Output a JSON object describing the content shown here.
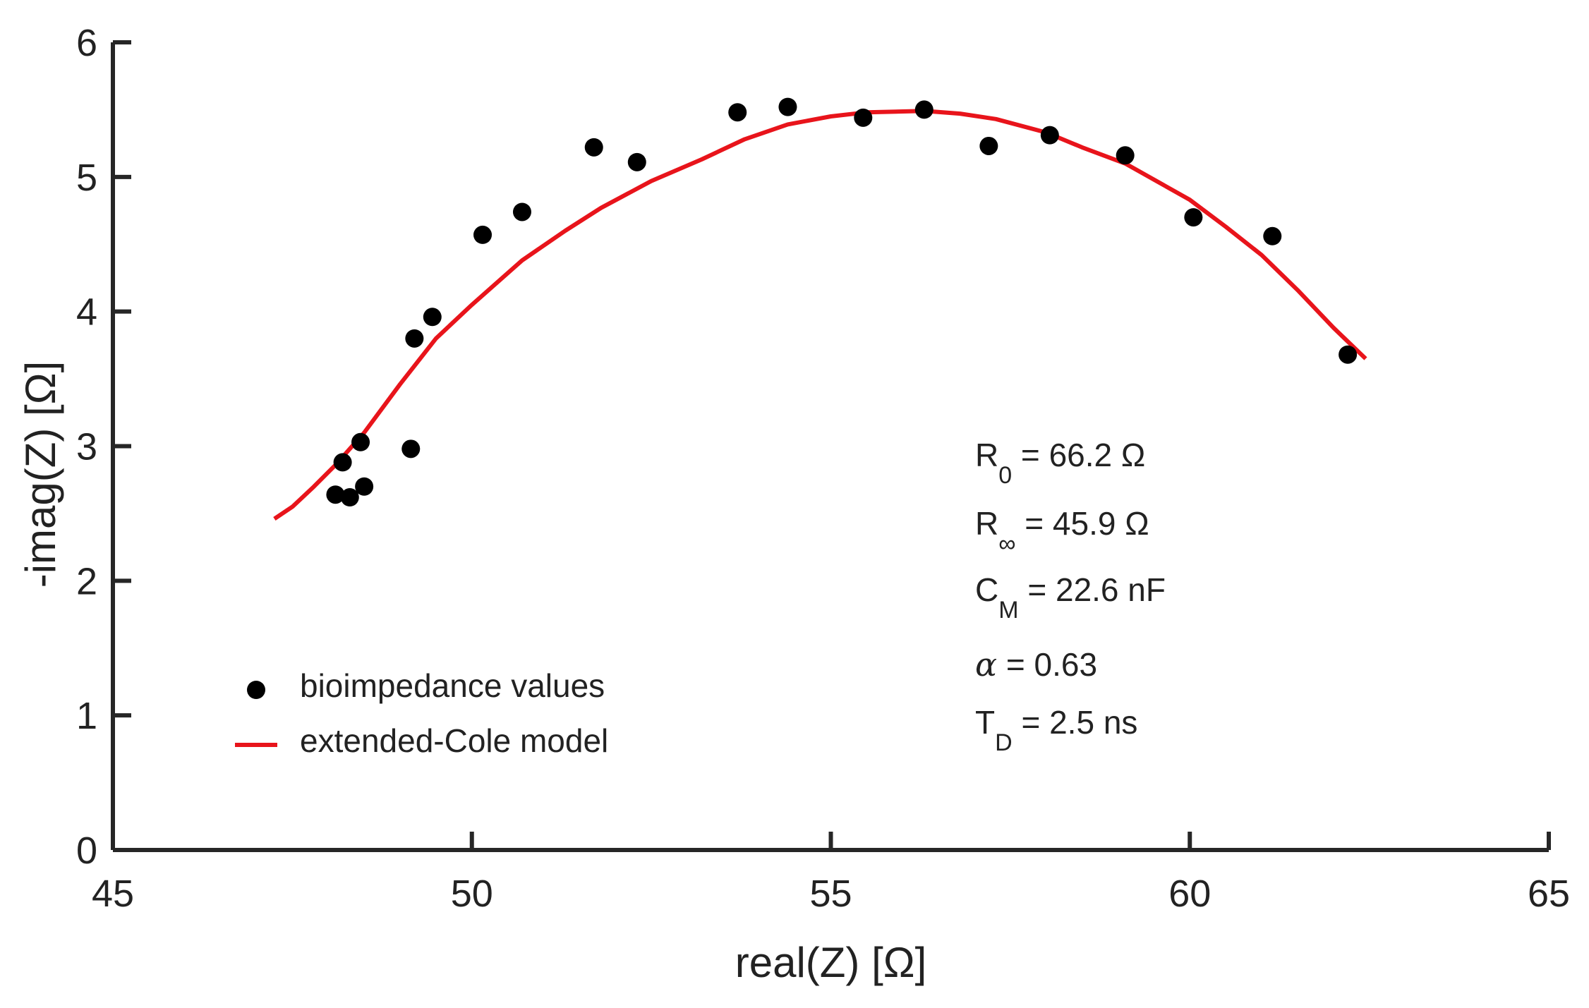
{
  "chart_data": {
    "type": "scatter",
    "title": "",
    "xlabel": "real(Z) [Ω]",
    "ylabel": "-imag(Z) [Ω]",
    "xlim": [
      45,
      65
    ],
    "ylim": [
      0,
      6
    ],
    "xticks": [
      "45",
      "50",
      "55",
      "60",
      "65"
    ],
    "yticks": [
      "0",
      "1",
      "2",
      "3",
      "4",
      "5",
      "6"
    ],
    "grid": false,
    "legend_position": "bottom-left",
    "series": [
      {
        "name": "bioimpedance values",
        "kind": "scatter",
        "color": "#000000",
        "points": [
          [
            48.1,
            2.64
          ],
          [
            48.3,
            2.62
          ],
          [
            48.2,
            2.88
          ],
          [
            48.5,
            2.7
          ],
          [
            48.45,
            3.03
          ],
          [
            49.15,
            2.98
          ],
          [
            49.2,
            3.8
          ],
          [
            49.45,
            3.96
          ],
          [
            50.15,
            4.57
          ],
          [
            50.7,
            4.74
          ],
          [
            51.7,
            5.22
          ],
          [
            52.3,
            5.11
          ],
          [
            53.7,
            5.48
          ],
          [
            54.4,
            5.52
          ],
          [
            55.45,
            5.44
          ],
          [
            56.3,
            5.5
          ],
          [
            57.2,
            5.23
          ],
          [
            58.05,
            5.31
          ],
          [
            59.1,
            5.16
          ],
          [
            60.05,
            4.7
          ],
          [
            61.15,
            4.56
          ],
          [
            62.2,
            3.68
          ]
        ]
      },
      {
        "name": "extended-Cole model",
        "kind": "line",
        "color": "#e8141b",
        "points": [
          [
            47.25,
            2.46
          ],
          [
            47.5,
            2.55
          ],
          [
            47.8,
            2.7
          ],
          [
            48.1,
            2.86
          ],
          [
            48.5,
            3.1
          ],
          [
            49.0,
            3.46
          ],
          [
            49.5,
            3.8
          ],
          [
            50.0,
            4.05
          ],
          [
            50.7,
            4.38
          ],
          [
            51.3,
            4.6
          ],
          [
            51.8,
            4.77
          ],
          [
            52.5,
            4.97
          ],
          [
            53.2,
            5.13
          ],
          [
            53.8,
            5.28
          ],
          [
            54.4,
            5.39
          ],
          [
            55.0,
            5.45
          ],
          [
            55.5,
            5.48
          ],
          [
            56.3,
            5.49
          ],
          [
            56.8,
            5.47
          ],
          [
            57.3,
            5.43
          ],
          [
            58.0,
            5.33
          ],
          [
            58.5,
            5.22
          ],
          [
            59.1,
            5.1
          ],
          [
            59.5,
            4.98
          ],
          [
            60.0,
            4.83
          ],
          [
            60.5,
            4.63
          ],
          [
            61.0,
            4.42
          ],
          [
            61.5,
            4.16
          ],
          [
            62.0,
            3.88
          ],
          [
            62.45,
            3.65
          ]
        ]
      }
    ],
    "annotations": [
      {
        "main": "R",
        "sub": "0",
        "rest": " = 66.2 Ω"
      },
      {
        "main": "R",
        "sub": "∞",
        "rest": " = 45.9 Ω"
      },
      {
        "main": "C",
        "sub": "M",
        "rest": " = 22.6 nF"
      },
      {
        "main": "α",
        "sub": "",
        "rest": " = 0.63"
      },
      {
        "main": "T",
        "sub": "D",
        "rest": " = 2.5 ns"
      }
    ]
  }
}
